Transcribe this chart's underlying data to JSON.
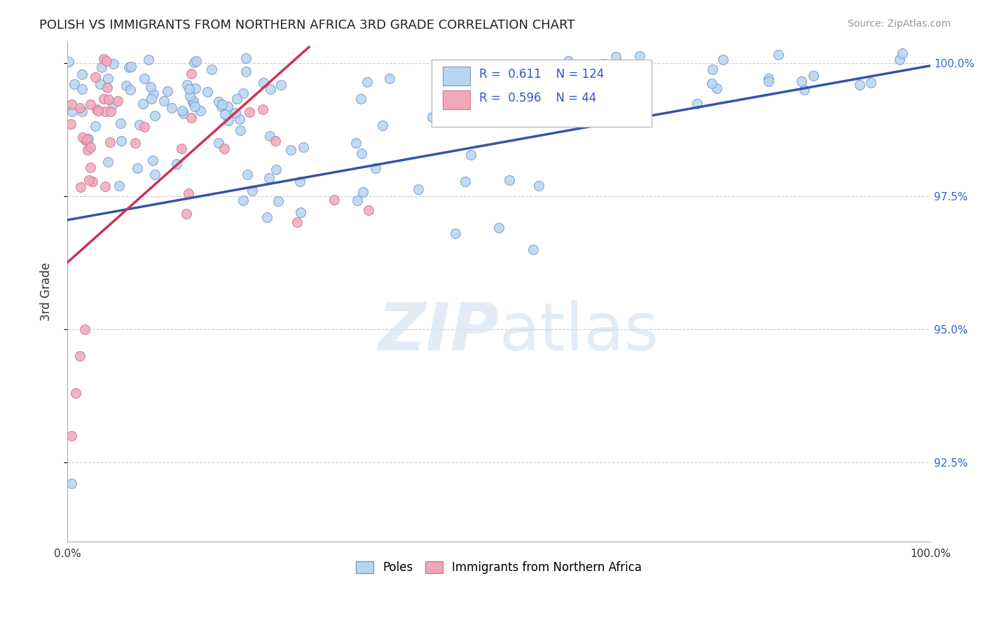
{
  "title": "POLISH VS IMMIGRANTS FROM NORTHERN AFRICA 3RD GRADE CORRELATION CHART",
  "source_text": "Source: ZipAtlas.com",
  "ylabel": "3rd Grade",
  "xlim": [
    0.0,
    1.0
  ],
  "ylim": [
    0.91,
    1.004
  ],
  "yticks": [
    0.925,
    0.95,
    0.975,
    1.0
  ],
  "ytick_labels": [
    "92.5%",
    "95.0%",
    "97.5%",
    "100.0%"
  ],
  "background_color": "#ffffff",
  "grid_color": "#cccccc",
  "blue_color": "#b8d4f0",
  "blue_edge_color": "#7799cc",
  "pink_color": "#f0a8b8",
  "pink_edge_color": "#cc7799",
  "trend_blue": "#3355aa",
  "trend_pink": "#cc3355",
  "legend_R_blue": "0.611",
  "legend_N_blue": "124",
  "legend_R_pink": "0.596",
  "legend_N_pink": "44",
  "marker_size": 100,
  "blue_trend_x": [
    0.0,
    1.0
  ],
  "blue_trend_y": [
    0.9705,
    0.9995
  ],
  "pink_trend_x": [
    0.0,
    0.28
  ],
  "pink_trend_y": [
    0.9625,
    1.003
  ]
}
